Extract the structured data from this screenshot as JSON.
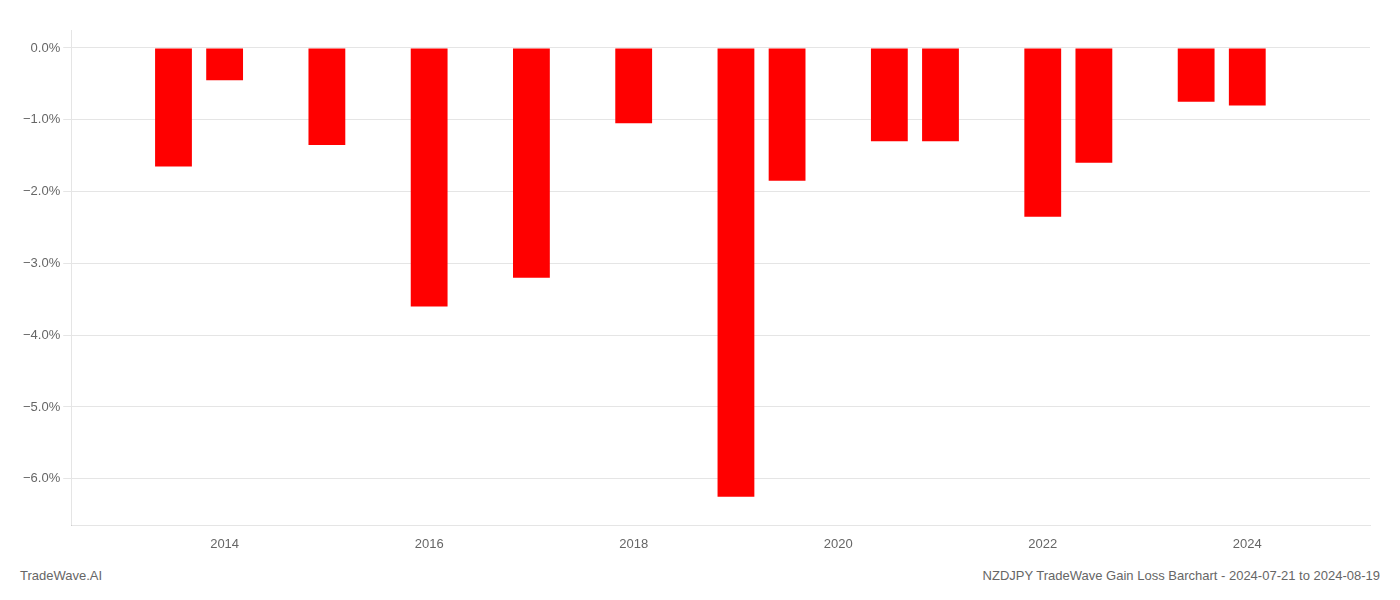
{
  "chart_data": {
    "type": "bar",
    "x": [
      2013.5,
      2014.0,
      2015.0,
      2016.0,
      2017.0,
      2018.0,
      2019.0,
      2019.5,
      2020.5,
      2021.0,
      2022.0,
      2022.5,
      2023.5,
      2024.0
    ],
    "values": [
      -1.65,
      -0.45,
      -1.35,
      -3.6,
      -3.2,
      -1.05,
      -6.25,
      -1.85,
      -1.3,
      -1.3,
      -2.35,
      -1.6,
      -0.75,
      -0.8
    ],
    "color": "#ff0000",
    "xlim": [
      2012.5,
      2025.2
    ],
    "xticks": [
      2014,
      2016,
      2018,
      2020,
      2022,
      2024
    ],
    "ylim": [
      -6.65,
      0.25
    ],
    "yticks": [
      {
        "value": 0.0,
        "label": "0.0%"
      },
      {
        "value": -1.0,
        "label": "−1.0%"
      },
      {
        "value": -2.0,
        "label": "−2.0%"
      },
      {
        "value": -3.0,
        "label": "−3.0%"
      },
      {
        "value": -4.0,
        "label": "−4.0%"
      },
      {
        "value": -5.0,
        "label": "−5.0%"
      },
      {
        "value": -6.0,
        "label": "−6.0%"
      }
    ],
    "grid": true,
    "annotations": [
      "TradeWave.AI",
      "NZDJPY TradeWave Gain Loss Barchart - 2024-07-21 to 2024-08-19"
    ]
  }
}
